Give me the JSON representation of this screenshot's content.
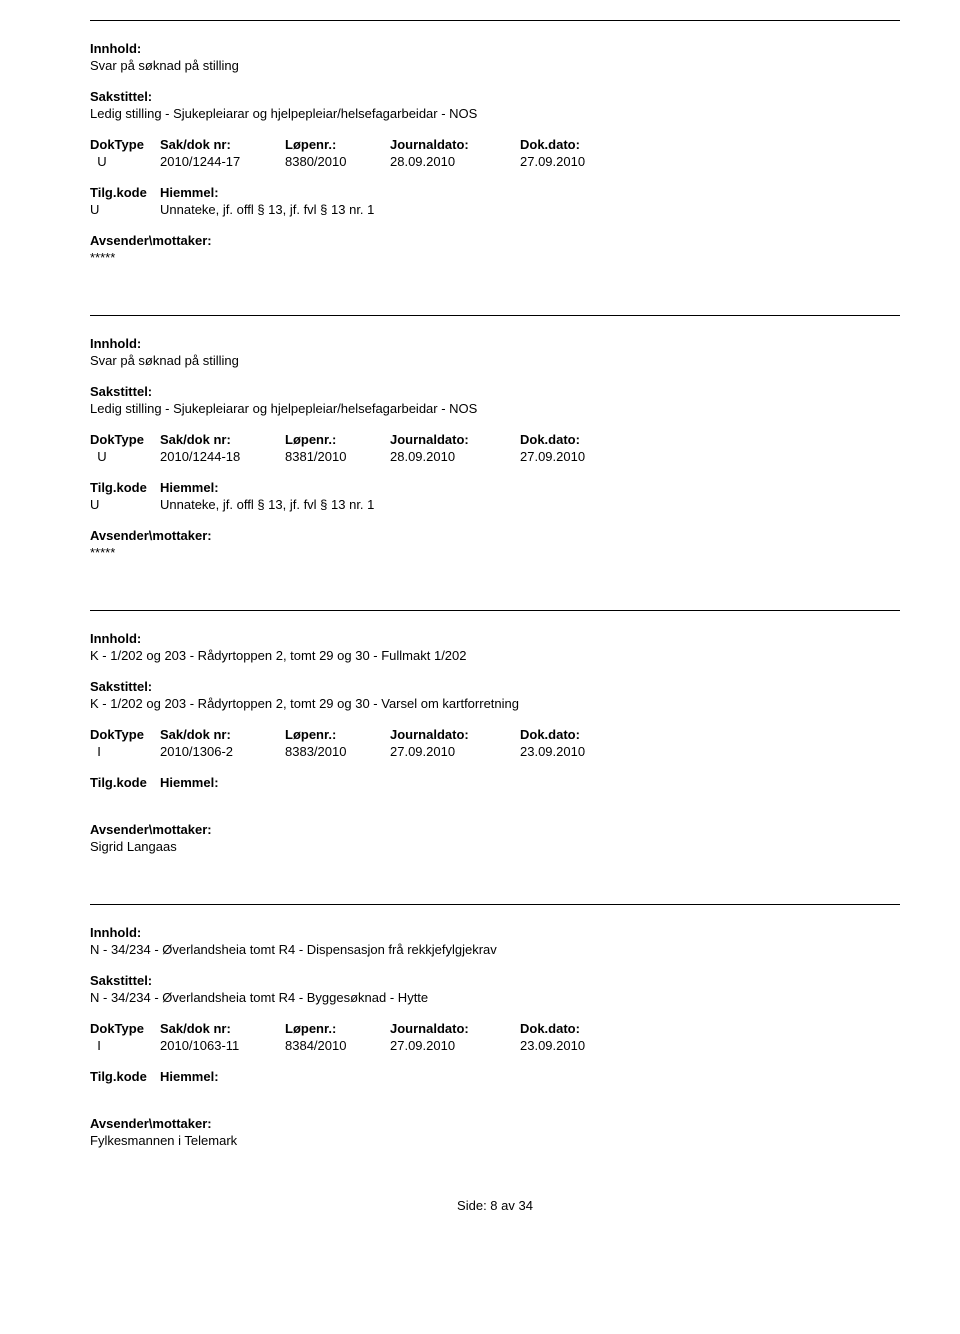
{
  "labels": {
    "innhold": "Innhold:",
    "sakstittel": "Sakstittel:",
    "doktype": "DokType",
    "sakdoknr": "Sak/dok nr:",
    "lopenr": "Løpenr.:",
    "journaldato": "Journaldato:",
    "dokdato": "Dok.dato:",
    "tilgkode": "Tilg.kode",
    "hiemmel": "Hiemmel:",
    "avsender": "Avsender\\mottaker:"
  },
  "records": [
    {
      "innhold": "Svar på søknad på stilling",
      "sakstittel": "Ledig stilling - Sjukepleiarar og hjelpepleiar/helsefagarbeidar - NOS",
      "doktype": "U",
      "sakdoknr": "2010/1244-17",
      "lopenr": "8380/2010",
      "journaldato": "28.09.2010",
      "dokdato": "27.09.2010",
      "hiemmel_code": "U",
      "hiemmel_text": "Unnateke, jf. offl § 13, jf. fvl § 13 nr. 1",
      "avsender": "*****"
    },
    {
      "innhold": "Svar på søknad på stilling",
      "sakstittel": "Ledig stilling - Sjukepleiarar og hjelpepleiar/helsefagarbeidar - NOS",
      "doktype": "U",
      "sakdoknr": "2010/1244-18",
      "lopenr": "8381/2010",
      "journaldato": "28.09.2010",
      "dokdato": "27.09.2010",
      "hiemmel_code": "U",
      "hiemmel_text": "Unnateke, jf. offl § 13, jf. fvl § 13 nr. 1",
      "avsender": "*****"
    },
    {
      "innhold": "K - 1/202 og 203 - Rådyrtoppen 2, tomt 29 og 30 - Fullmakt 1/202",
      "sakstittel": "K - 1/202 og 203 - Rådyrtoppen 2, tomt 29 og 30 - Varsel om kartforretning",
      "doktype": "I",
      "sakdoknr": "2010/1306-2",
      "lopenr": "8383/2010",
      "journaldato": "27.09.2010",
      "dokdato": "23.09.2010",
      "hiemmel_code": "",
      "hiemmel_text": "",
      "avsender": "Sigrid Langaas"
    },
    {
      "innhold": "N - 34/234 - Øverlandsheia tomt R4 - Dispensasjon frå rekkjefylgjekrav",
      "sakstittel": "N - 34/234 - Øverlandsheia tomt R4 - Byggesøknad - Hytte",
      "doktype": "I",
      "sakdoknr": "2010/1063-11",
      "lopenr": "8384/2010",
      "journaldato": "27.09.2010",
      "dokdato": "23.09.2010",
      "hiemmel_code": "",
      "hiemmel_text": "",
      "avsender": "Fylkesmannen i Telemark"
    }
  ],
  "footer": {
    "text": "Side: 8 av 34"
  }
}
